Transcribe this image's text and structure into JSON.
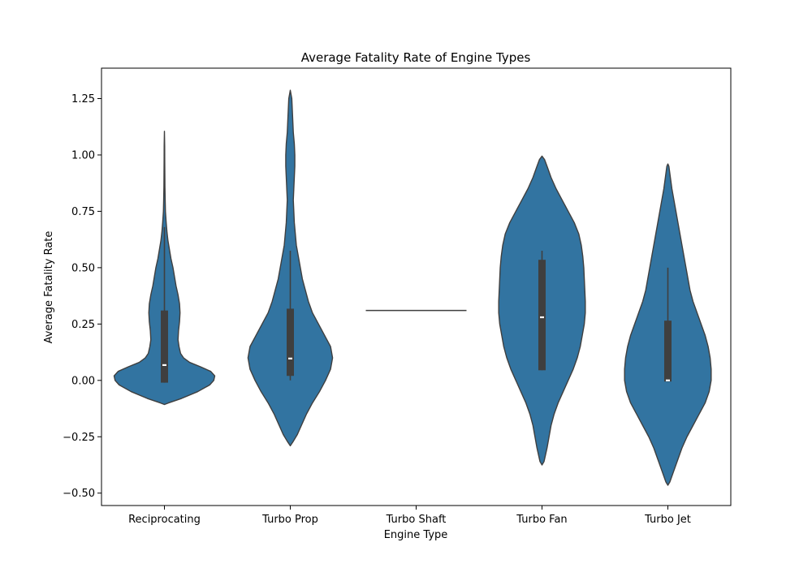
{
  "chart_data": {
    "type": "violin",
    "title": "Average Fatality Rate of Engine Types",
    "xlabel": "Engine Type",
    "ylabel": "Average Fatality Rate",
    "categories": [
      "Reciprocating",
      "Turbo Prop",
      "Turbo Shaft",
      "Turbo Fan",
      "Turbo Jet"
    ],
    "ylim": [
      -0.555,
      1.385
    ],
    "yticks": [
      -0.5,
      -0.25,
      0.0,
      0.25,
      0.5,
      0.75,
      1.0,
      1.25
    ],
    "ytick_labels": [
      "−0.50",
      "−0.25",
      "0.00",
      "0.25",
      "0.50",
      "0.75",
      "1.00",
      "1.25"
    ],
    "grid": false,
    "colors": {
      "fill": "#3274a1",
      "edge": "#3f3f3f",
      "box": "#3f3f3f",
      "median": "#ffffff"
    },
    "violins": [
      {
        "category": "Reciprocating",
        "profile": [
          [
            -0.107,
            0.0
          ],
          [
            -0.1,
            0.08
          ],
          [
            -0.08,
            0.34
          ],
          [
            -0.05,
            0.66
          ],
          [
            -0.02,
            0.9
          ],
          [
            0.0,
            0.98
          ],
          [
            0.02,
            1.0
          ],
          [
            0.04,
            0.92
          ],
          [
            0.06,
            0.72
          ],
          [
            0.08,
            0.5
          ],
          [
            0.1,
            0.38
          ],
          [
            0.12,
            0.32
          ],
          [
            0.15,
            0.29
          ],
          [
            0.18,
            0.27
          ],
          [
            0.22,
            0.28
          ],
          [
            0.26,
            0.3
          ],
          [
            0.3,
            0.31
          ],
          [
            0.34,
            0.3
          ],
          [
            0.38,
            0.27
          ],
          [
            0.42,
            0.23
          ],
          [
            0.46,
            0.2
          ],
          [
            0.5,
            0.17
          ],
          [
            0.54,
            0.13
          ],
          [
            0.58,
            0.1
          ],
          [
            0.62,
            0.07
          ],
          [
            0.66,
            0.05
          ],
          [
            0.7,
            0.035
          ],
          [
            0.75,
            0.02
          ],
          [
            0.8,
            0.015
          ],
          [
            0.86,
            0.01
          ],
          [
            0.92,
            0.008
          ],
          [
            0.98,
            0.006
          ],
          [
            1.04,
            0.005
          ],
          [
            1.105,
            0.0
          ]
        ],
        "q1": -0.01,
        "median": 0.068,
        "q3": 0.31,
        "whisker_low": -0.01,
        "whisker_high": 0.68
      },
      {
        "category": "Turbo Prop",
        "profile": [
          [
            -0.29,
            0.0
          ],
          [
            -0.27,
            0.06
          ],
          [
            -0.24,
            0.14
          ],
          [
            -0.2,
            0.22
          ],
          [
            -0.15,
            0.32
          ],
          [
            -0.1,
            0.44
          ],
          [
            -0.05,
            0.58
          ],
          [
            0.0,
            0.7
          ],
          [
            0.05,
            0.8
          ],
          [
            0.1,
            0.84
          ],
          [
            0.15,
            0.8
          ],
          [
            0.2,
            0.68
          ],
          [
            0.25,
            0.56
          ],
          [
            0.3,
            0.44
          ],
          [
            0.35,
            0.36
          ],
          [
            0.4,
            0.3
          ],
          [
            0.45,
            0.24
          ],
          [
            0.5,
            0.2
          ],
          [
            0.55,
            0.16
          ],
          [
            0.6,
            0.12
          ],
          [
            0.65,
            0.1
          ],
          [
            0.7,
            0.08
          ],
          [
            0.75,
            0.07
          ],
          [
            0.8,
            0.06
          ],
          [
            0.85,
            0.07
          ],
          [
            0.9,
            0.08
          ],
          [
            0.95,
            0.09
          ],
          [
            1.0,
            0.09
          ],
          [
            1.05,
            0.08
          ],
          [
            1.1,
            0.06
          ],
          [
            1.15,
            0.05
          ],
          [
            1.2,
            0.04
          ],
          [
            1.25,
            0.03
          ],
          [
            1.287,
            0.0
          ]
        ],
        "q1": 0.02,
        "median": 0.097,
        "q3": 0.318,
        "whisker_low": 0.0,
        "whisker_high": 0.575
      },
      {
        "category": "Turbo Shaft",
        "single_value": 0.31
      },
      {
        "category": "Turbo Fan",
        "profile": [
          [
            -0.375,
            0.0
          ],
          [
            -0.36,
            0.04
          ],
          [
            -0.3,
            0.1
          ],
          [
            -0.25,
            0.14
          ],
          [
            -0.2,
            0.18
          ],
          [
            -0.15,
            0.24
          ],
          [
            -0.1,
            0.32
          ],
          [
            -0.05,
            0.42
          ],
          [
            0.0,
            0.52
          ],
          [
            0.05,
            0.62
          ],
          [
            0.1,
            0.7
          ],
          [
            0.15,
            0.76
          ],
          [
            0.2,
            0.8
          ],
          [
            0.25,
            0.84
          ],
          [
            0.3,
            0.86
          ],
          [
            0.35,
            0.86
          ],
          [
            0.4,
            0.85
          ],
          [
            0.45,
            0.84
          ],
          [
            0.5,
            0.83
          ],
          [
            0.55,
            0.81
          ],
          [
            0.6,
            0.78
          ],
          [
            0.65,
            0.73
          ],
          [
            0.7,
            0.64
          ],
          [
            0.75,
            0.52
          ],
          [
            0.8,
            0.4
          ],
          [
            0.85,
            0.28
          ],
          [
            0.9,
            0.18
          ],
          [
            0.95,
            0.1
          ],
          [
            0.98,
            0.05
          ],
          [
            0.995,
            0.0
          ]
        ],
        "q1": 0.045,
        "median": 0.28,
        "q3": 0.535,
        "whisker_low": 0.045,
        "whisker_high": 0.575
      },
      {
        "category": "Turbo Jet",
        "profile": [
          [
            -0.465,
            0.0
          ],
          [
            -0.45,
            0.04
          ],
          [
            -0.4,
            0.12
          ],
          [
            -0.35,
            0.2
          ],
          [
            -0.3,
            0.28
          ],
          [
            -0.25,
            0.38
          ],
          [
            -0.2,
            0.5
          ],
          [
            -0.15,
            0.62
          ],
          [
            -0.1,
            0.74
          ],
          [
            -0.05,
            0.82
          ],
          [
            0.0,
            0.86
          ],
          [
            0.05,
            0.86
          ],
          [
            0.1,
            0.84
          ],
          [
            0.15,
            0.8
          ],
          [
            0.2,
            0.74
          ],
          [
            0.25,
            0.66
          ],
          [
            0.3,
            0.58
          ],
          [
            0.35,
            0.5
          ],
          [
            0.4,
            0.44
          ],
          [
            0.45,
            0.4
          ],
          [
            0.5,
            0.36
          ],
          [
            0.55,
            0.32
          ],
          [
            0.6,
            0.28
          ],
          [
            0.65,
            0.24
          ],
          [
            0.7,
            0.2
          ],
          [
            0.75,
            0.16
          ],
          [
            0.8,
            0.12
          ],
          [
            0.85,
            0.08
          ],
          [
            0.9,
            0.05
          ],
          [
            0.95,
            0.02
          ],
          [
            0.96,
            0.0
          ]
        ],
        "q1": -0.005,
        "median": 0.0,
        "q3": 0.265,
        "whisker_low": -0.005,
        "whisker_high": 0.5
      }
    ]
  }
}
